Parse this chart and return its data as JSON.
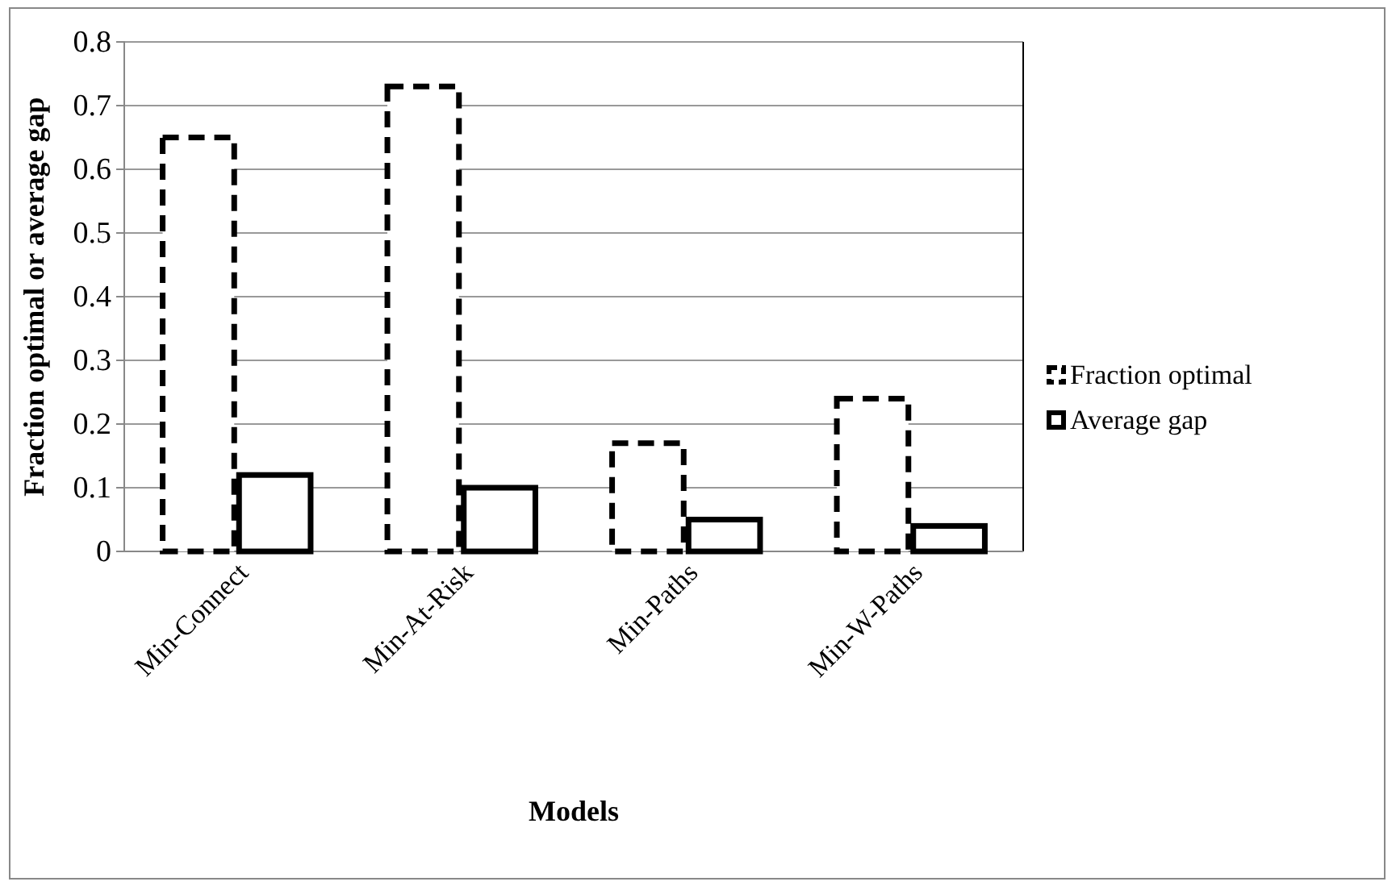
{
  "chart_data": {
    "type": "bar",
    "xlabel": "Models",
    "ylabel": "Fraction optimal or average gap",
    "categories": [
      "Min-Connect",
      "Min-At-Risk",
      "Min-Paths",
      "Min-W-Paths"
    ],
    "series": [
      {
        "name": "Fraction optimal",
        "color": "#000000",
        "line_style": "dashed",
        "values": [
          0.65,
          0.73,
          0.17,
          0.24
        ]
      },
      {
        "name": "Average gap",
        "color": "#000000",
        "line_style": "solid",
        "values": [
          0.12,
          0.1,
          0.05,
          0.04
        ]
      }
    ],
    "ylim": [
      0,
      0.8
    ],
    "yticks": [
      0,
      0.1,
      0.2,
      0.3,
      0.4,
      0.5,
      0.6,
      0.7,
      0.8
    ],
    "grid": "y",
    "legend": "right"
  }
}
